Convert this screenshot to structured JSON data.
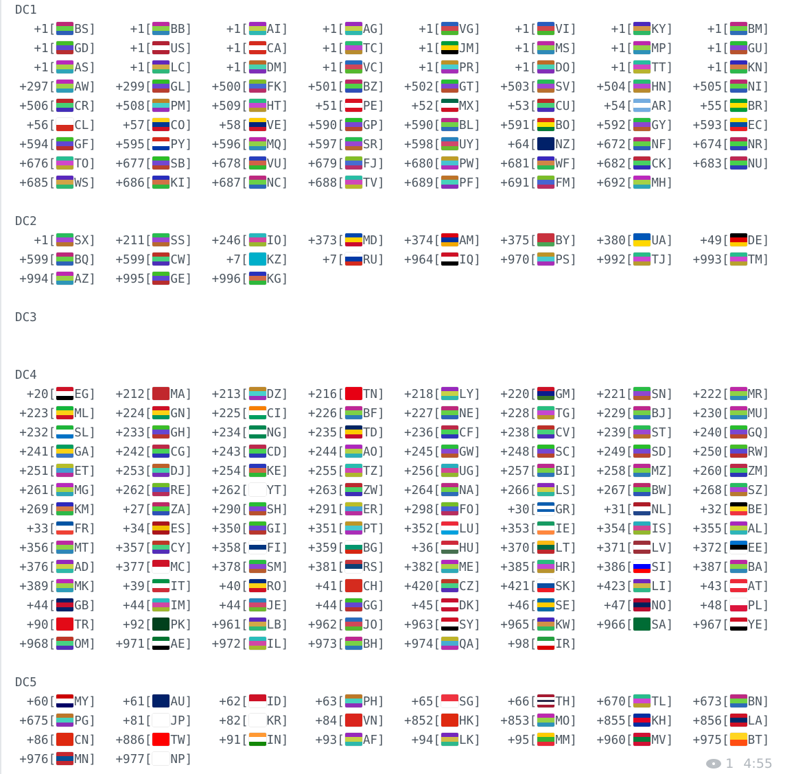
{
  "message": {
    "sections": [
      {
        "title": "DC1",
        "entries": [
          [
            "+1",
            "BS"
          ],
          [
            "+1",
            "BB"
          ],
          [
            "+1",
            "AI"
          ],
          [
            "+1",
            "AG"
          ],
          [
            "+1",
            "VG"
          ],
          [
            "+1",
            "VI"
          ],
          [
            "+1",
            "KY"
          ],
          [
            "+1",
            "BM"
          ],
          [
            "+1",
            "GD"
          ],
          [
            "+1",
            "US"
          ],
          [
            "+1",
            "CA"
          ],
          [
            "+1",
            "TC"
          ],
          [
            "+1",
            "JM"
          ],
          [
            "+1",
            "MS"
          ],
          [
            "+1",
            "MP"
          ],
          [
            "+1",
            "GU"
          ],
          [
            "+1",
            "AS"
          ],
          [
            "+1",
            "LC"
          ],
          [
            "+1",
            "DM"
          ],
          [
            "+1",
            "VC"
          ],
          [
            "+1",
            "PR"
          ],
          [
            "+1",
            "DO"
          ],
          [
            "+1",
            "TT"
          ],
          [
            "+1",
            "KN"
          ],
          [
            "+297",
            "AW"
          ],
          [
            "+299",
            "GL"
          ],
          [
            "+500",
            "FK"
          ],
          [
            "+501",
            "BZ"
          ],
          [
            "+502",
            "GT"
          ],
          [
            "+503",
            "SV"
          ],
          [
            "+504",
            "HN"
          ],
          [
            "+505",
            "NI"
          ],
          [
            "+506",
            "CR"
          ],
          [
            "+508",
            "PM"
          ],
          [
            "+509",
            "HT"
          ],
          [
            "+51",
            "PE"
          ],
          [
            "+52",
            "MX"
          ],
          [
            "+53",
            "CU"
          ],
          [
            "+54",
            "AR"
          ],
          [
            "+55",
            "BR"
          ],
          [
            "+56",
            "CL"
          ],
          [
            "+57",
            "CO"
          ],
          [
            "+58",
            "VE"
          ],
          [
            "+590",
            "GP"
          ],
          [
            "+590",
            "BL"
          ],
          [
            "+591",
            "BO"
          ],
          [
            "+592",
            "GY"
          ],
          [
            "+593",
            "EC"
          ],
          [
            "+594",
            "GF"
          ],
          [
            "+595",
            "PY"
          ],
          [
            "+596",
            "MQ"
          ],
          [
            "+597",
            "SR"
          ],
          [
            "+598",
            "UY"
          ],
          [
            "+64",
            "NZ"
          ],
          [
            "+672",
            "NF"
          ],
          [
            "+674",
            "NR"
          ],
          [
            "+676",
            "TO"
          ],
          [
            "+677",
            "SB"
          ],
          [
            "+678",
            "VU"
          ],
          [
            "+679",
            "FJ"
          ],
          [
            "+680",
            "PW"
          ],
          [
            "+681",
            "WF"
          ],
          [
            "+682",
            "CK"
          ],
          [
            "+683",
            "NU"
          ],
          [
            "+685",
            "WS"
          ],
          [
            "+686",
            "KI"
          ],
          [
            "+687",
            "NC"
          ],
          [
            "+688",
            "TV"
          ],
          [
            "+689",
            "PF"
          ],
          [
            "+691",
            "FM"
          ],
          [
            "+692",
            "MH"
          ]
        ],
        "blank_after": 1
      },
      {
        "title": "DC2",
        "entries": [
          [
            "+1",
            "SX"
          ],
          [
            "+211",
            "SS"
          ],
          [
            "+246",
            "IO"
          ],
          [
            "+373",
            "MD"
          ],
          [
            "+374",
            "AM"
          ],
          [
            "+375",
            "BY"
          ],
          [
            "+380",
            "UA"
          ],
          [
            "+49",
            "DE"
          ],
          [
            "+599",
            "BQ"
          ],
          [
            "+599",
            "CW"
          ],
          [
            "+7",
            "KZ"
          ],
          [
            "+7",
            "RU"
          ],
          [
            "+964",
            "IQ"
          ],
          [
            "+970",
            "PS"
          ],
          [
            "+992",
            "TJ"
          ],
          [
            "+993",
            "TM"
          ],
          [
            "+994",
            "AZ"
          ],
          [
            "+995",
            "GE"
          ],
          [
            "+996",
            "KG"
          ]
        ],
        "blank_after": 1
      },
      {
        "title": "DC3",
        "entries": [],
        "blank_after": 2
      },
      {
        "title": "DC4",
        "entries": [
          [
            "+20",
            "EG"
          ],
          [
            "+212",
            "MA"
          ],
          [
            "+213",
            "DZ"
          ],
          [
            "+216",
            "TN"
          ],
          [
            "+218",
            "LY"
          ],
          [
            "+220",
            "GM"
          ],
          [
            "+221",
            "SN"
          ],
          [
            "+222",
            "MR"
          ],
          [
            "+223",
            "ML"
          ],
          [
            "+224",
            "GN"
          ],
          [
            "+225",
            "CI"
          ],
          [
            "+226",
            "BF"
          ],
          [
            "+227",
            "NE"
          ],
          [
            "+228",
            "TG"
          ],
          [
            "+229",
            "BJ"
          ],
          [
            "+230",
            "MU"
          ],
          [
            "+232",
            "SL"
          ],
          [
            "+233",
            "GH"
          ],
          [
            "+234",
            "NG"
          ],
          [
            "+235",
            "TD"
          ],
          [
            "+236",
            "CF"
          ],
          [
            "+238",
            "CV"
          ],
          [
            "+239",
            "ST"
          ],
          [
            "+240",
            "GQ"
          ],
          [
            "+241",
            "GA"
          ],
          [
            "+242",
            "CG"
          ],
          [
            "+243",
            "CD"
          ],
          [
            "+244",
            "AO"
          ],
          [
            "+245",
            "GW"
          ],
          [
            "+248",
            "SC"
          ],
          [
            "+249",
            "SD"
          ],
          [
            "+250",
            "RW"
          ],
          [
            "+251",
            "ET"
          ],
          [
            "+253",
            "DJ"
          ],
          [
            "+254",
            "KE"
          ],
          [
            "+255",
            "TZ"
          ],
          [
            "+256",
            "UG"
          ],
          [
            "+257",
            "BI"
          ],
          [
            "+258",
            "MZ"
          ],
          [
            "+260",
            "ZM"
          ],
          [
            "+261",
            "MG"
          ],
          [
            "+262",
            "RE"
          ],
          [
            "+262",
            "YT"
          ],
          [
            "+263",
            "ZW"
          ],
          [
            "+264",
            "NA"
          ],
          [
            "+266",
            "LS"
          ],
          [
            "+267",
            "BW"
          ],
          [
            "+268",
            "SZ"
          ],
          [
            "+269",
            "KM"
          ],
          [
            "+27",
            "ZA"
          ],
          [
            "+290",
            "SH"
          ],
          [
            "+291",
            "ER"
          ],
          [
            "+298",
            "FO"
          ],
          [
            "+30",
            "GR"
          ],
          [
            "+31",
            "NL"
          ],
          [
            "+32",
            "BE"
          ],
          [
            "+33",
            "FR"
          ],
          [
            "+34",
            "ES"
          ],
          [
            "+350",
            "GI"
          ],
          [
            "+351",
            "PT"
          ],
          [
            "+352",
            "LU"
          ],
          [
            "+353",
            "IE"
          ],
          [
            "+354",
            "IS"
          ],
          [
            "+355",
            "AL"
          ],
          [
            "+356",
            "MT"
          ],
          [
            "+357",
            "CY"
          ],
          [
            "+358",
            "FI"
          ],
          [
            "+359",
            "BG"
          ],
          [
            "+36",
            "HU"
          ],
          [
            "+370",
            "LT"
          ],
          [
            "+371",
            "LV"
          ],
          [
            "+372",
            "EE"
          ],
          [
            "+376",
            "AD"
          ],
          [
            "+377",
            "MC"
          ],
          [
            "+378",
            "SM"
          ],
          [
            "+381",
            "RS"
          ],
          [
            "+382",
            "ME"
          ],
          [
            "+385",
            "HR"
          ],
          [
            "+386",
            "SI"
          ],
          [
            "+387",
            "BA"
          ],
          [
            "+389",
            "MK"
          ],
          [
            "+39",
            "IT"
          ],
          [
            "+40",
            "RO"
          ],
          [
            "+41",
            "CH"
          ],
          [
            "+420",
            "CZ"
          ],
          [
            "+421",
            "SK"
          ],
          [
            "+423",
            "LI"
          ],
          [
            "+43",
            "AT"
          ],
          [
            "+44",
            "GB"
          ],
          [
            "+44",
            "IM"
          ],
          [
            "+44",
            "JE"
          ],
          [
            "+44",
            "GG"
          ],
          [
            "+45",
            "DK"
          ],
          [
            "+46",
            "SE"
          ],
          [
            "+47",
            "NO"
          ],
          [
            "+48",
            "PL"
          ],
          [
            "+90",
            "TR"
          ],
          [
            "+92",
            "PK"
          ],
          [
            "+961",
            "LB"
          ],
          [
            "+962",
            "JO"
          ],
          [
            "+963",
            "SY"
          ],
          [
            "+965",
            "KW"
          ],
          [
            "+966",
            "SA"
          ],
          [
            "+967",
            "YE"
          ],
          [
            "+968",
            "OM"
          ],
          [
            "+971",
            "AE"
          ],
          [
            "+972",
            "IL"
          ],
          [
            "+973",
            "BH"
          ],
          [
            "+974",
            "QA"
          ],
          [
            "+98",
            "IR"
          ]
        ],
        "blank_after": 1
      },
      {
        "title": "DC5",
        "entries": [
          [
            "+60",
            "MY"
          ],
          [
            "+61",
            "AU"
          ],
          [
            "+62",
            "ID"
          ],
          [
            "+63",
            "PH"
          ],
          [
            "+65",
            "SG"
          ],
          [
            "+66",
            "TH"
          ],
          [
            "+670",
            "TL"
          ],
          [
            "+673",
            "BN"
          ],
          [
            "+675",
            "PG"
          ],
          [
            "+81",
            "JP"
          ],
          [
            "+82",
            "KR"
          ],
          [
            "+84",
            "VN"
          ],
          [
            "+852",
            "HK"
          ],
          [
            "+853",
            "MO"
          ],
          [
            "+855",
            "KH"
          ],
          [
            "+856",
            "LA"
          ],
          [
            "+86",
            "CN"
          ],
          [
            "+886",
            "TW"
          ],
          [
            "+91",
            "IN"
          ],
          [
            "+93",
            "AF"
          ],
          [
            "+94",
            "LK"
          ],
          [
            "+95",
            "MM"
          ],
          [
            "+960",
            "MV"
          ],
          [
            "+975",
            "BT"
          ],
          [
            "+976",
            "MN"
          ],
          [
            "+977",
            "NP"
          ]
        ],
        "blank_after": 0
      }
    ],
    "footer": {
      "views_icon": "eye-icon",
      "views": "1",
      "time": "4:55"
    }
  },
  "colors": {
    "text": "#4d5761",
    "meta": "#b0b6bc"
  }
}
